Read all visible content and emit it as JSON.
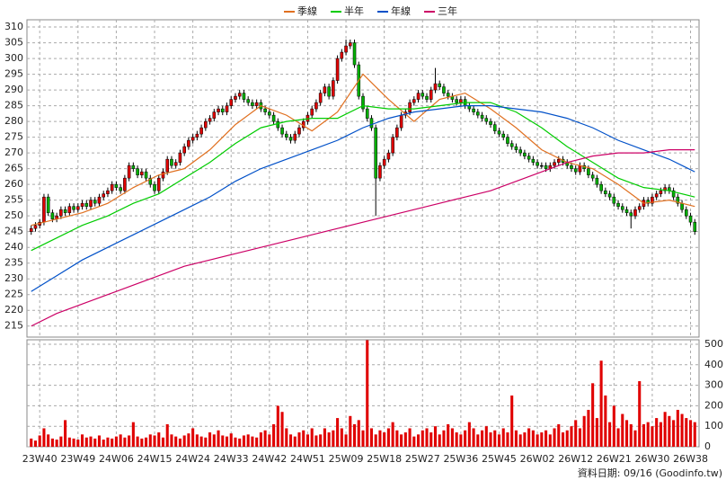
{
  "chart_data": {
    "type": "candlestick",
    "legend": [
      "季線",
      "半年",
      "年線",
      "三年"
    ],
    "footer": "資料日期: 09/16  (Goodinfo.tw)",
    "up_color": "#e00000",
    "down_color": "#00b000",
    "flat_color": "#000000",
    "volume_color": "#e00000",
    "xlim": [
      -1,
      157
    ],
    "xticks": [
      {
        "value": 2,
        "label": "23W40"
      },
      {
        "value": 11,
        "label": "23W49"
      },
      {
        "value": 20,
        "label": "24W06"
      },
      {
        "value": 29,
        "label": "24W15"
      },
      {
        "value": 38,
        "label": "24W24"
      },
      {
        "value": 47,
        "label": "24W33"
      },
      {
        "value": 56,
        "label": "24W42"
      },
      {
        "value": 65,
        "label": "24W51"
      },
      {
        "value": 74,
        "label": "25W09"
      },
      {
        "value": 83,
        "label": "25W18"
      },
      {
        "value": 92,
        "label": "25W27"
      },
      {
        "value": 101,
        "label": "25W36"
      },
      {
        "value": 110,
        "label": "25W45"
      },
      {
        "value": 119,
        "label": "26W02"
      },
      {
        "value": 128,
        "label": "26W12"
      },
      {
        "value": 137,
        "label": "26W21"
      },
      {
        "value": 146,
        "label": "26W30"
      },
      {
        "value": 155,
        "label": "26W38"
      }
    ],
    "ylim": [
      211.5,
      312.3
    ],
    "yticks": [
      215,
      220,
      225,
      230,
      235,
      240,
      245,
      250,
      255,
      260,
      265,
      270,
      275,
      280,
      285,
      290,
      295,
      300,
      305,
      310
    ],
    "y2lim": [
      0,
      522
    ],
    "y2ticks": [
      0,
      100,
      200,
      300,
      400,
      500
    ],
    "grid": true,
    "ohlc": [
      [
        245,
        247,
        244,
        246
      ],
      [
        246,
        248,
        245,
        247
      ],
      [
        247,
        249,
        246,
        248
      ],
      [
        248,
        257,
        247,
        256
      ],
      [
        256,
        257,
        250,
        251
      ],
      [
        251,
        252,
        248,
        249
      ],
      [
        249,
        251,
        248,
        250
      ],
      [
        250,
        253,
        249,
        252
      ],
      [
        252,
        253,
        250,
        251
      ],
      [
        251,
        254,
        250,
        253
      ],
      [
        253,
        254,
        251,
        252
      ],
      [
        252,
        254,
        251,
        253
      ],
      [
        253,
        255,
        252,
        254
      ],
      [
        254,
        255,
        252,
        253
      ],
      [
        253,
        256,
        252,
        255
      ],
      [
        255,
        256,
        253,
        254
      ],
      [
        254,
        257,
        253,
        256
      ],
      [
        256,
        258,
        255,
        257
      ],
      [
        257,
        259,
        256,
        258
      ],
      [
        258,
        261,
        257,
        260
      ],
      [
        260,
        261,
        258,
        259
      ],
      [
        259,
        260,
        257,
        258
      ],
      [
        258,
        263,
        257,
        262
      ],
      [
        262,
        267,
        261,
        266
      ],
      [
        266,
        267,
        264,
        265
      ],
      [
        265,
        266,
        262,
        263
      ],
      [
        263,
        265,
        262,
        264
      ],
      [
        264,
        265,
        261,
        262
      ],
      [
        262,
        263,
        259,
        260
      ],
      [
        260,
        261,
        257,
        258
      ],
      [
        258,
        263,
        257,
        262
      ],
      [
        262,
        265,
        261,
        264
      ],
      [
        264,
        269,
        263,
        268
      ],
      [
        268,
        269,
        265,
        266
      ],
      [
        266,
        268,
        265,
        267
      ],
      [
        267,
        271,
        266,
        270
      ],
      [
        270,
        273,
        269,
        272
      ],
      [
        272,
        275,
        271,
        274
      ],
      [
        274,
        276,
        273,
        275
      ],
      [
        275,
        277,
        274,
        276
      ],
      [
        276,
        279,
        275,
        278
      ],
      [
        278,
        281,
        277,
        280
      ],
      [
        280,
        282,
        279,
        281
      ],
      [
        281,
        284,
        280,
        283
      ],
      [
        283,
        285,
        282,
        284
      ],
      [
        284,
        285,
        282,
        283
      ],
      [
        283,
        286,
        282,
        285
      ],
      [
        285,
        288,
        284,
        287
      ],
      [
        287,
        289,
        286,
        288
      ],
      [
        288,
        290,
        287,
        289
      ],
      [
        289,
        290,
        286,
        287
      ],
      [
        287,
        288,
        285,
        286
      ],
      [
        286,
        287,
        284,
        285
      ],
      [
        285,
        287,
        284,
        286
      ],
      [
        286,
        287,
        283,
        284
      ],
      [
        284,
        285,
        282,
        283
      ],
      [
        283,
        284,
        281,
        282
      ],
      [
        282,
        283,
        279,
        280
      ],
      [
        280,
        281,
        277,
        278
      ],
      [
        278,
        279,
        275,
        276
      ],
      [
        276,
        277,
        274,
        275
      ],
      [
        275,
        276,
        273,
        274
      ],
      [
        274,
        277,
        273,
        276
      ],
      [
        276,
        279,
        275,
        278
      ],
      [
        278,
        281,
        277,
        280
      ],
      [
        280,
        283,
        279,
        282
      ],
      [
        282,
        285,
        281,
        284
      ],
      [
        284,
        287,
        283,
        286
      ],
      [
        286,
        290,
        285,
        289
      ],
      [
        289,
        292,
        288,
        291
      ],
      [
        291,
        292,
        287,
        288
      ],
      [
        288,
        294,
        287,
        293
      ],
      [
        293,
        301,
        292,
        300
      ],
      [
        300,
        303,
        299,
        302
      ],
      [
        302,
        306,
        301,
        304
      ],
      [
        304,
        306,
        303,
        305
      ],
      [
        305,
        306,
        297,
        298
      ],
      [
        298,
        299,
        287,
        288
      ],
      [
        288,
        289,
        283,
        284
      ],
      [
        284,
        285,
        280,
        281
      ],
      [
        281,
        282,
        277,
        278
      ],
      [
        278,
        279,
        250,
        262
      ],
      [
        262,
        267,
        261,
        266
      ],
      [
        266,
        269,
        265,
        268
      ],
      [
        268,
        271,
        267,
        270
      ],
      [
        270,
        276,
        269,
        275
      ],
      [
        275,
        279,
        274,
        278
      ],
      [
        278,
        283,
        277,
        282
      ],
      [
        282,
        284,
        281,
        283
      ],
      [
        283,
        287,
        282,
        286
      ],
      [
        286,
        288,
        285,
        287
      ],
      [
        287,
        290,
        286,
        289
      ],
      [
        289,
        290,
        287,
        288
      ],
      [
        288,
        289,
        286,
        287
      ],
      [
        287,
        291,
        286,
        290
      ],
      [
        290,
        297,
        289,
        292
      ],
      [
        292,
        293,
        290,
        291
      ],
      [
        291,
        292,
        288,
        289
      ],
      [
        289,
        290,
        287,
        288
      ],
      [
        288,
        289,
        286,
        287
      ],
      [
        287,
        288,
        285,
        286
      ],
      [
        286,
        288,
        285,
        287
      ],
      [
        287,
        288,
        284,
        285
      ],
      [
        285,
        286,
        283,
        284
      ],
      [
        284,
        285,
        282,
        283
      ],
      [
        283,
        284,
        281,
        282
      ],
      [
        282,
        283,
        280,
        281
      ],
      [
        281,
        282,
        279,
        280
      ],
      [
        280,
        281,
        278,
        279
      ],
      [
        279,
        280,
        276,
        277
      ],
      [
        277,
        278,
        275,
        276
      ],
      [
        276,
        277,
        274,
        275
      ],
      [
        275,
        276,
        272,
        273
      ],
      [
        273,
        274,
        271,
        272
      ],
      [
        272,
        273,
        270,
        271
      ],
      [
        271,
        272,
        269,
        270
      ],
      [
        270,
        271,
        268,
        269
      ],
      [
        269,
        270,
        267,
        268
      ],
      [
        268,
        269,
        266,
        267
      ],
      [
        267,
        268,
        265,
        266
      ],
      [
        266,
        267,
        265,
        266
      ],
      [
        266,
        267,
        264,
        265
      ],
      [
        265,
        267,
        264,
        266
      ],
      [
        266,
        268,
        265,
        267
      ],
      [
        267,
        269,
        266,
        268
      ],
      [
        268,
        269,
        266,
        267
      ],
      [
        267,
        268,
        265,
        266
      ],
      [
        266,
        267,
        264,
        265
      ],
      [
        265,
        266,
        263,
        264
      ],
      [
        264,
        267,
        263,
        266
      ],
      [
        266,
        267,
        264,
        265
      ],
      [
        265,
        266,
        262,
        263
      ],
      [
        263,
        264,
        261,
        262
      ],
      [
        262,
        263,
        259,
        260
      ],
      [
        260,
        261,
        257,
        258
      ],
      [
        258,
        259,
        256,
        257
      ],
      [
        257,
        258,
        255,
        256
      ],
      [
        256,
        257,
        253,
        254
      ],
      [
        254,
        255,
        252,
        253
      ],
      [
        253,
        254,
        251,
        252
      ],
      [
        252,
        253,
        250,
        251
      ],
      [
        251,
        252,
        246,
        250
      ],
      [
        250,
        253,
        249,
        252
      ],
      [
        252,
        254,
        251,
        253
      ],
      [
        253,
        256,
        252,
        255
      ],
      [
        255,
        256,
        253,
        254
      ],
      [
        254,
        257,
        253,
        256
      ],
      [
        256,
        258,
        255,
        257
      ],
      [
        257,
        259,
        256,
        258
      ],
      [
        258,
        260,
        257,
        259
      ],
      [
        259,
        260,
        257,
        258
      ],
      [
        258,
        259,
        255,
        256
      ],
      [
        256,
        257,
        253,
        254
      ],
      [
        254,
        255,
        251,
        252
      ],
      [
        252,
        253,
        249,
        250
      ],
      [
        250,
        251,
        247,
        248
      ],
      [
        248,
        249,
        244,
        245
      ]
    ],
    "volume": [
      40,
      30,
      55,
      90,
      60,
      40,
      35,
      50,
      130,
      45,
      40,
      35,
      60,
      45,
      50,
      40,
      55,
      35,
      45,
      40,
      50,
      60,
      45,
      55,
      120,
      50,
      40,
      45,
      60,
      55,
      70,
      45,
      110,
      60,
      50,
      40,
      55,
      65,
      90,
      60,
      50,
      45,
      70,
      60,
      80,
      55,
      50,
      65,
      45,
      40,
      55,
      60,
      50,
      45,
      70,
      80,
      60,
      110,
      200,
      170,
      90,
      60,
      50,
      70,
      80,
      60,
      90,
      55,
      60,
      90,
      70,
      80,
      140,
      90,
      60,
      150,
      110,
      130,
      80,
      520,
      90,
      60,
      80,
      70,
      90,
      120,
      80,
      60,
      70,
      90,
      50,
      60,
      80,
      90,
      70,
      100,
      60,
      80,
      110,
      90,
      70,
      60,
      80,
      120,
      90,
      60,
      80,
      100,
      70,
      80,
      60,
      90,
      70,
      250,
      80,
      60,
      70,
      90,
      80,
      60,
      70,
      80,
      60,
      90,
      110,
      70,
      80,
      100,
      130,
      90,
      150,
      180,
      310,
      140,
      420,
      250,
      120,
      200,
      90,
      160,
      130,
      110,
      80,
      320,
      110,
      120,
      100,
      140,
      120,
      170,
      150,
      130,
      180,
      160,
      140,
      130,
      120
    ],
    "series": [
      {
        "name": "季線",
        "color": "#e07020",
        "x": [
          0,
          6,
          12,
          18,
          24,
          30,
          36,
          42,
          48,
          54,
          60,
          66,
          72,
          78,
          84,
          90,
          96,
          102,
          108,
          114,
          120,
          126,
          132,
          138,
          144,
          150,
          156
        ],
        "values": [
          247,
          249,
          251,
          254,
          259,
          263,
          265,
          271,
          279,
          285,
          282,
          277,
          283,
          295,
          287,
          280,
          287,
          289,
          284,
          278,
          271,
          267,
          265,
          260,
          254,
          255,
          253
        ]
      },
      {
        "name": "半年",
        "color": "#00cc00",
        "x": [
          0,
          6,
          12,
          18,
          24,
          30,
          36,
          42,
          48,
          54,
          60,
          66,
          72,
          78,
          84,
          90,
          96,
          102,
          108,
          114,
          120,
          126,
          132,
          138,
          144,
          150,
          156
        ],
        "values": [
          239,
          243,
          247,
          250,
          254,
          257,
          262,
          267,
          273,
          278,
          280,
          281,
          281,
          285,
          284,
          284,
          285,
          286,
          286,
          283,
          278,
          272,
          267,
          262,
          259,
          258,
          256
        ]
      },
      {
        "name": "年線",
        "color": "#0050c8",
        "x": [
          0,
          6,
          12,
          18,
          24,
          30,
          36,
          42,
          48,
          54,
          60,
          66,
          72,
          78,
          84,
          90,
          96,
          102,
          108,
          114,
          120,
          126,
          132,
          138,
          144,
          150,
          156
        ],
        "values": [
          226,
          231,
          236,
          240,
          244,
          248,
          252,
          256,
          261,
          265,
          268,
          271,
          274,
          278,
          281,
          283,
          284,
          285,
          285,
          284,
          283,
          281,
          278,
          274,
          271,
          268,
          264
        ]
      },
      {
        "name": "三年",
        "color": "#cc0066",
        "x": [
          0,
          6,
          12,
          18,
          24,
          30,
          36,
          42,
          48,
          54,
          60,
          66,
          72,
          78,
          84,
          90,
          96,
          102,
          108,
          114,
          120,
          126,
          132,
          138,
          144,
          150,
          156
        ],
        "values": [
          215,
          219,
          222,
          225,
          228,
          231,
          234,
          236,
          238,
          240,
          242,
          244,
          246,
          248,
          250,
          252,
          254,
          256,
          258,
          261,
          264,
          267,
          269,
          270,
          270,
          271,
          271
        ]
      }
    ]
  }
}
